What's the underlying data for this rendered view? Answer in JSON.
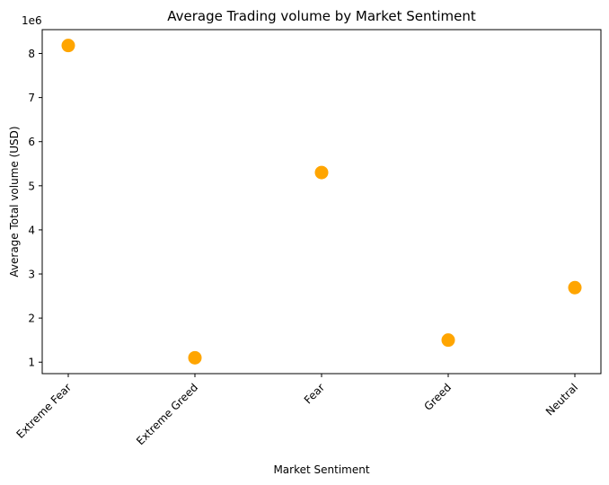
{
  "chart_data": {
    "type": "scatter",
    "title": "Average Trading volume by Market Sentiment",
    "xlabel": "Market Sentiment",
    "ylabel": "Average Total volume (USD)",
    "y_offset_label": "1e6",
    "categories": [
      "Extreme Fear",
      "Extreme Greed",
      "Fear",
      "Greed",
      "Neutral"
    ],
    "values": [
      8.18,
      1.1,
      5.3,
      1.5,
      2.69
    ],
    "y_scale_factor": 1000000,
    "yticks": [
      1,
      2,
      3,
      4,
      5,
      6,
      7,
      8
    ],
    "ylim": [
      0.74,
      8.54
    ],
    "grid": false,
    "legend": false,
    "colors": {
      "marker": "#FFA500",
      "axis": "#000000"
    }
  }
}
